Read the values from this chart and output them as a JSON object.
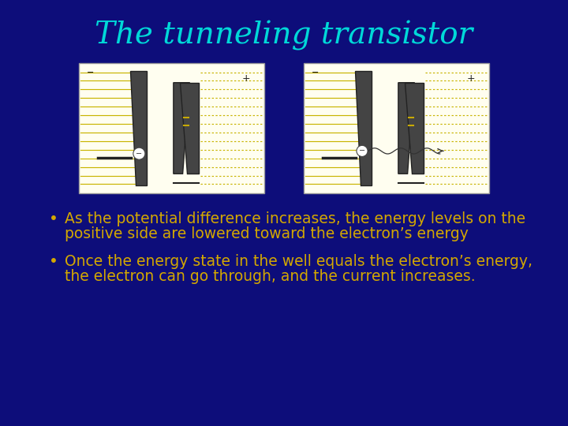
{
  "background_color": "#0d0d7a",
  "title": "The tunneling transistor",
  "title_color": "#00d8d8",
  "title_fontsize": 28,
  "bullet_color": "#d4a800",
  "bullet_fontsize": 13.5,
  "bullet1_line1": "As the potential difference increases, the energy levels on the",
  "bullet1_line2": "positive side are lowered toward the electron’s energy",
  "bullet2_line1": "Once the energy state in the well equals the electron’s energy,",
  "bullet2_line2": "the electron can go through, and the current increases.",
  "diagram_bg": "#fffef0",
  "line_color_solid": "#c8b400",
  "line_color_dot": "#c8b400",
  "barrier_color": "#444444",
  "barrier_edge": "#222222"
}
